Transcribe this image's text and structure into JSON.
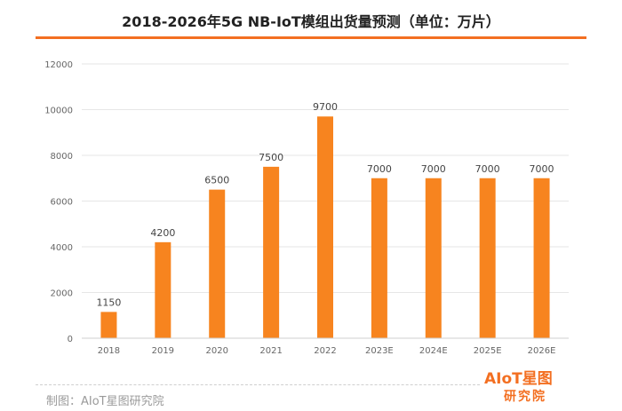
{
  "page": {
    "title": "2018-2026年5G NB-IoT模组出货量预测（单位：万片）",
    "credit": "制图：AIoT星图研究院",
    "logo_top": "AIoT星图",
    "logo_bottom": "研究院",
    "accent_color": "#f36f21",
    "bar_color": "#f7841f"
  },
  "chart_data": {
    "type": "bar",
    "title": "2018-2026年5G NB-IoT模组出货量预测（单位：万片）",
    "xlabel": "",
    "ylabel": "",
    "categories": [
      "2018",
      "2019",
      "2020",
      "2021",
      "2022",
      "2023E",
      "2024E",
      "2025E",
      "2026E"
    ],
    "values": [
      1150,
      4200,
      6500,
      7500,
      9700,
      7000,
      7000,
      7000,
      7000
    ],
    "data_labels": [
      "1150",
      "4200",
      "6500",
      "7500",
      "9700",
      "7000",
      "7000",
      "7000",
      "7000"
    ],
    "yticks": [
      "0",
      "2000",
      "4000",
      "6000",
      "8000",
      "10000",
      "12000"
    ],
    "ytick_values": [
      0,
      2000,
      4000,
      6000,
      8000,
      10000,
      12000
    ],
    "ylim": [
      0,
      12000
    ],
    "grid": true,
    "legend": "none"
  }
}
